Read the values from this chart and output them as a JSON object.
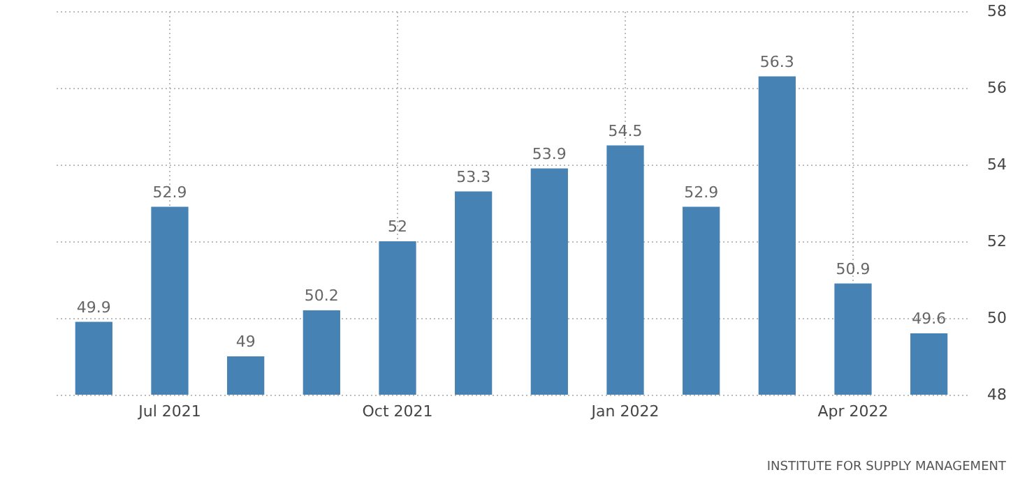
{
  "chart_data": {
    "type": "bar",
    "categories": [
      null,
      "Jul 2021",
      null,
      null,
      "Oct 2021",
      null,
      null,
      "Jan 2022",
      null,
      null,
      "Apr 2022",
      null
    ],
    "values": [
      49.9,
      52.9,
      49,
      50.2,
      52,
      53.3,
      53.9,
      54.5,
      52.9,
      56.3,
      50.9,
      49.6
    ],
    "color": "#4682b4",
    "ylim": [
      48,
      58
    ],
    "yticks": [
      48,
      50,
      52,
      54,
      56,
      58
    ],
    "grid": true,
    "data_labels": true,
    "annotations": [
      "INSTITUTE FOR SUPPLY MANAGEMENT"
    ]
  }
}
